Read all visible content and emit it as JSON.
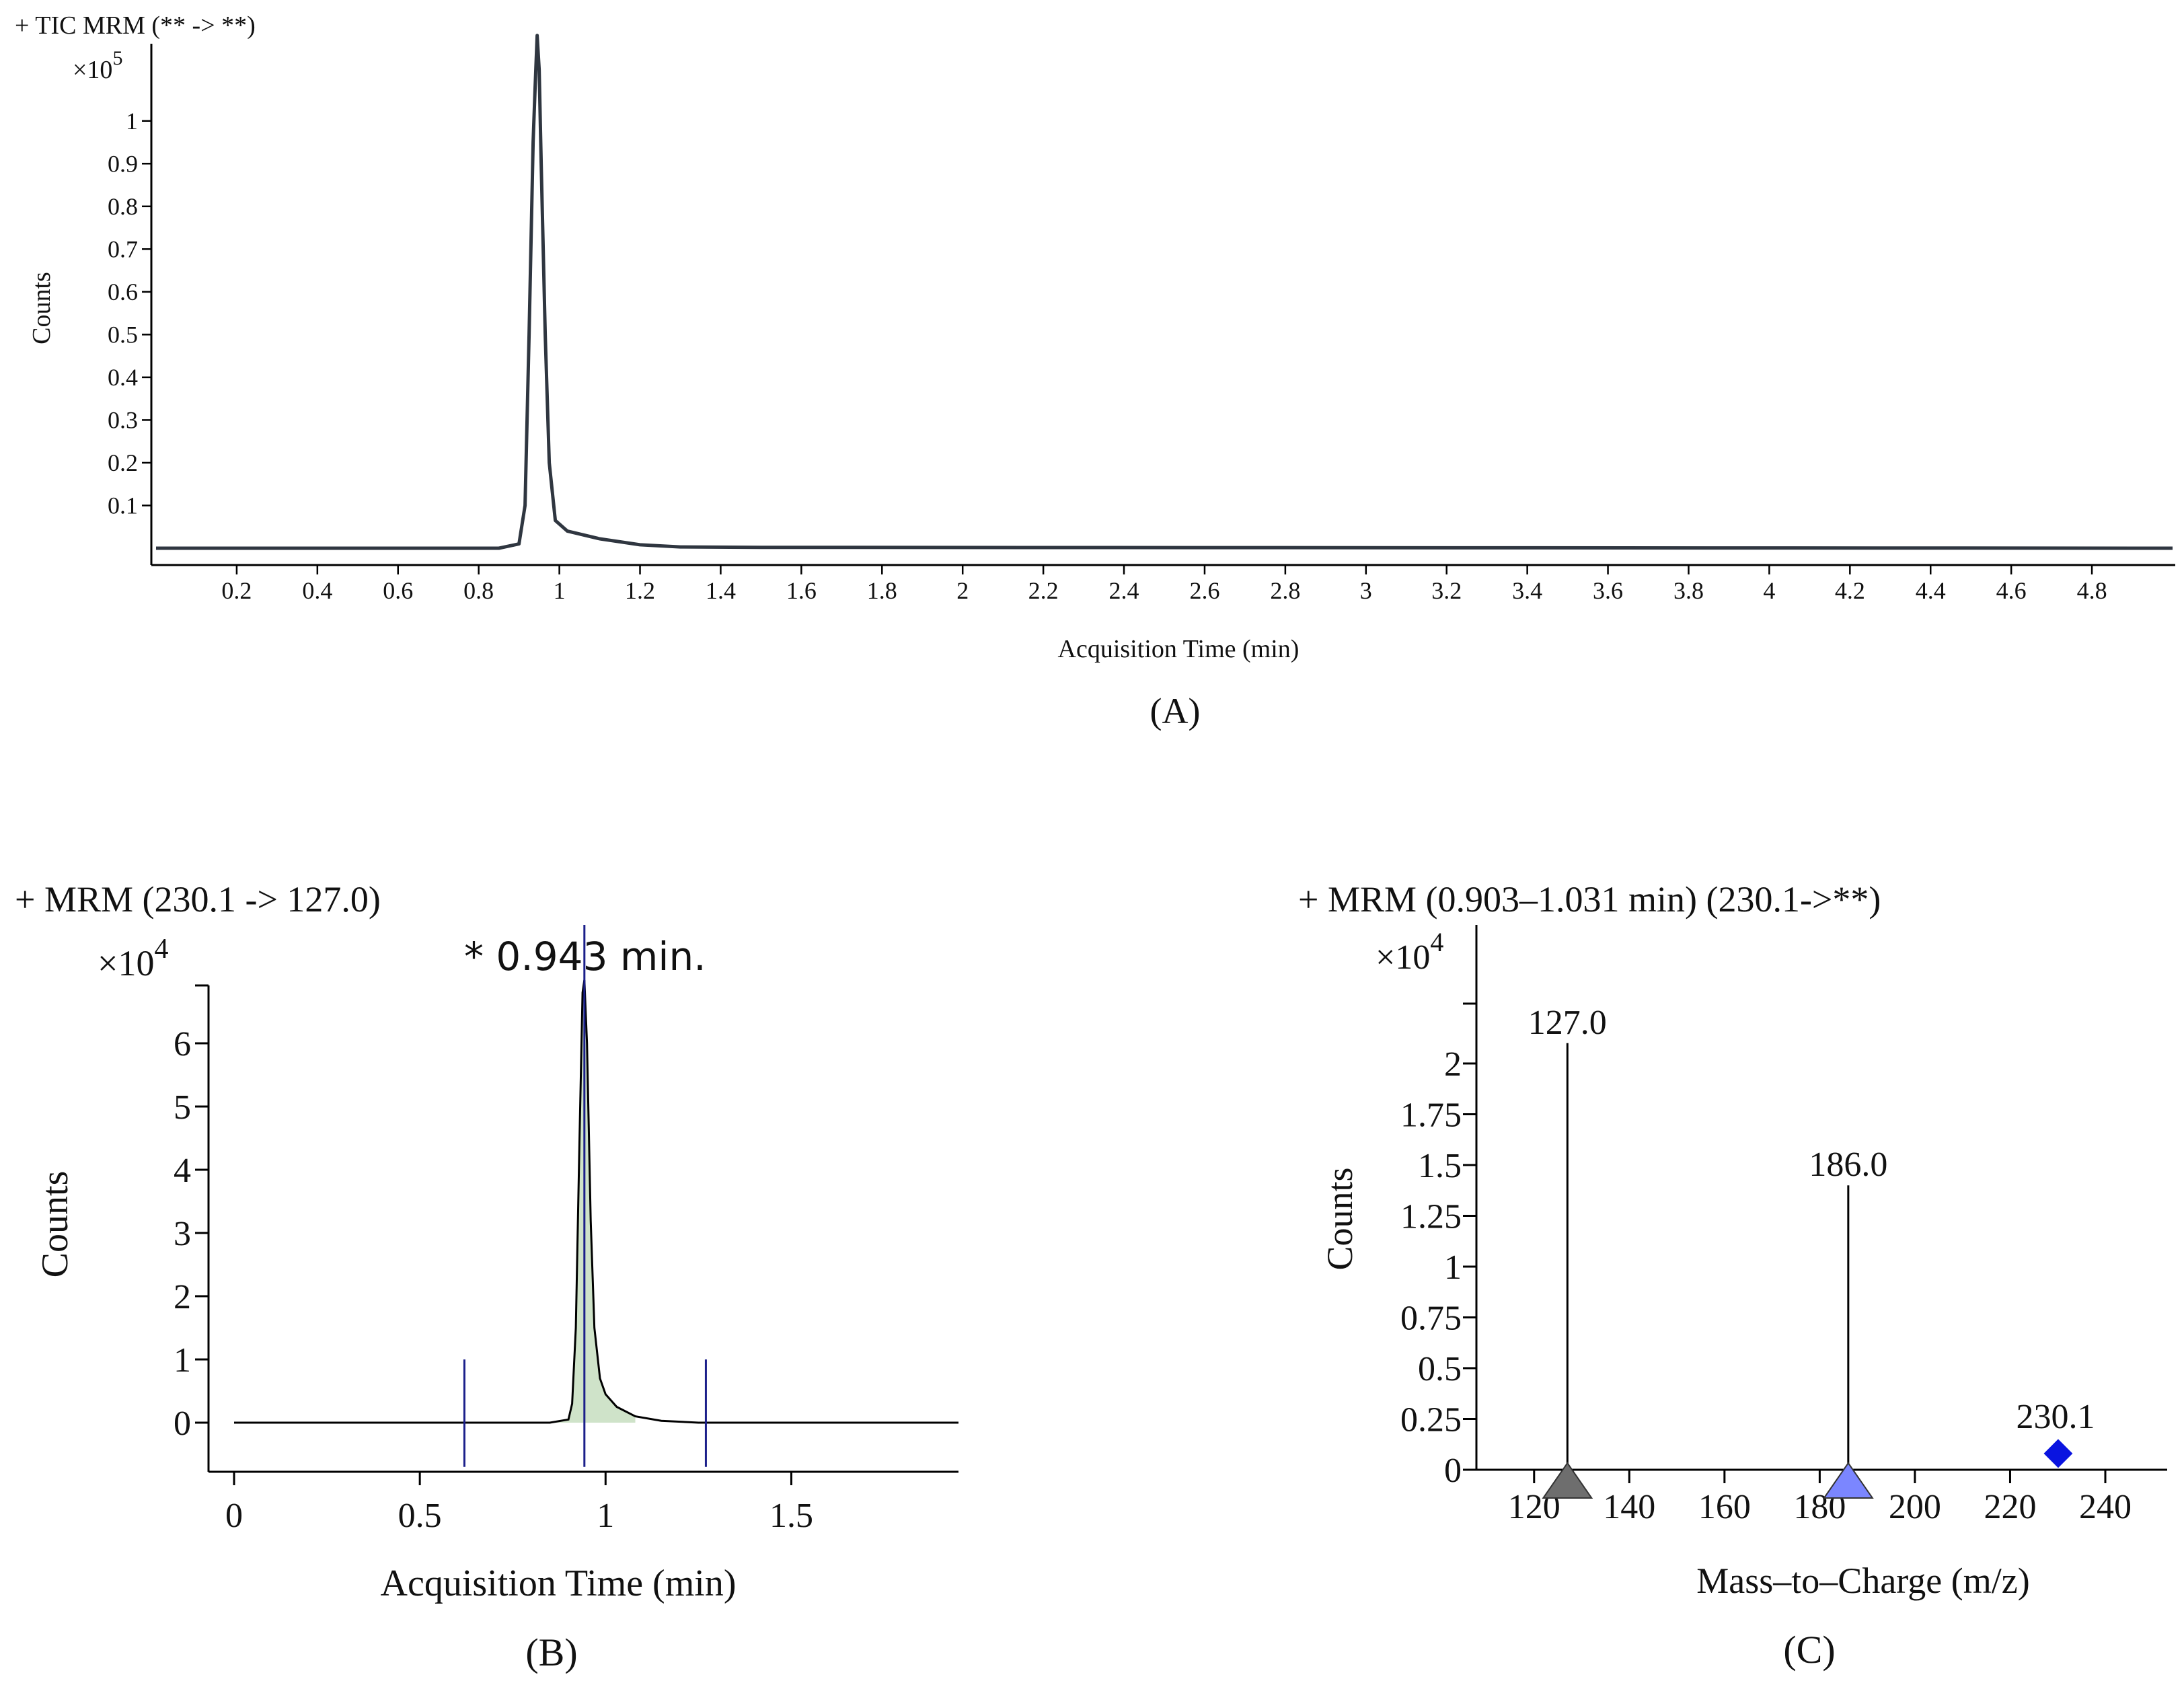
{
  "chart_data": [
    {
      "id": "A",
      "type": "line",
      "panel_label": "(A)",
      "title": "+ TIC MRM (** -> **)",
      "multiplier": "×10",
      "exponent": "5",
      "xlabel": "Acquisition Time (min)",
      "ylabel": "Counts",
      "xlim": [
        0,
        5.0
      ],
      "ylim": [
        0,
        1.22
      ],
      "xticks": [
        0.2,
        0.4,
        0.6,
        0.8,
        1,
        1.2,
        1.4,
        1.6,
        1.8,
        2,
        2.2,
        2.4,
        2.6,
        2.8,
        3,
        3.2,
        3.4,
        3.6,
        3.8,
        4,
        4.2,
        4.4,
        4.6,
        4.8
      ],
      "yticks": [
        0.1,
        0.2,
        0.3,
        0.4,
        0.5,
        0.6,
        0.7,
        0.8,
        0.9,
        1
      ],
      "series": [
        {
          "color": "#2f3640",
          "points": [
            [
              0.0,
              0.0
            ],
            [
              0.85,
              0.0
            ],
            [
              0.9,
              0.01
            ],
            [
              0.915,
              0.1
            ],
            [
              0.925,
              0.5
            ],
            [
              0.935,
              0.95
            ],
            [
              0.94,
              1.08
            ],
            [
              0.945,
              1.2
            ],
            [
              0.95,
              1.12
            ],
            [
              0.955,
              0.9
            ],
            [
              0.965,
              0.5
            ],
            [
              0.975,
              0.2
            ],
            [
              0.99,
              0.065
            ],
            [
              1.02,
              0.04
            ],
            [
              1.1,
              0.022
            ],
            [
              1.2,
              0.008
            ],
            [
              1.3,
              0.003
            ],
            [
              1.5,
              0.002
            ],
            [
              5.0,
              0.0
            ]
          ]
        }
      ],
      "grid": false
    },
    {
      "id": "B",
      "type": "line",
      "panel_label": "(B)",
      "title": "+ MRM (230.1 -> 127.0)",
      "multiplier": "×10",
      "exponent": "4",
      "annotation": "* 0.943 min.",
      "xlabel": "Acquisition Time (min)",
      "ylabel": "Counts",
      "xlim": [
        -0.05,
        1.95
      ],
      "ylim": [
        -0.7,
        7.0
      ],
      "xticks": [
        0,
        0.5,
        1,
        1.5
      ],
      "yticks": [
        0,
        1,
        2,
        3,
        4,
        5,
        6
      ],
      "integration_markers": [
        0.62,
        0.943,
        1.27
      ],
      "fill_color": "#cfe3c9",
      "series": [
        {
          "color": "#000000",
          "points": [
            [
              0.0,
              0.0
            ],
            [
              0.85,
              0.0
            ],
            [
              0.9,
              0.05
            ],
            [
              0.91,
              0.3
            ],
            [
              0.92,
              1.5
            ],
            [
              0.93,
              4.5
            ],
            [
              0.938,
              6.8
            ],
            [
              0.943,
              7.0
            ],
            [
              0.95,
              6.0
            ],
            [
              0.96,
              3.2
            ],
            [
              0.97,
              1.5
            ],
            [
              0.985,
              0.7
            ],
            [
              1.0,
              0.45
            ],
            [
              1.03,
              0.25
            ],
            [
              1.08,
              0.1
            ],
            [
              1.15,
              0.03
            ],
            [
              1.25,
              0.0
            ],
            [
              1.95,
              0.0
            ]
          ]
        }
      ],
      "grid": false
    },
    {
      "id": "C",
      "type": "bar",
      "panel_label": "(C)",
      "title": "+ MRM (0.903–1.031 min) (230.1->**)",
      "multiplier": "×10",
      "exponent": "4",
      "xlabel": "Mass–to–Charge (m/z)",
      "ylabel": "Counts",
      "xlim": [
        110,
        253
      ],
      "ylim": [
        0,
        2.27
      ],
      "xticks": [
        120,
        140,
        160,
        180,
        200,
        220,
        240
      ],
      "yticks": [
        0,
        0.25,
        0.5,
        0.75,
        1,
        1.25,
        1.5,
        1.75,
        2
      ],
      "peaks": [
        {
          "mz": 127.0,
          "value": 2.1,
          "label": "127.0",
          "marker": "triangle",
          "color": "#6e6e6e"
        },
        {
          "mz": 186.0,
          "value": 1.4,
          "label": "186.0",
          "marker": "triangle",
          "color": "#7b86ff"
        },
        {
          "mz": 230.1,
          "value": 0.08,
          "label": "230.1",
          "marker": "diamond",
          "color": "#0a14e0"
        }
      ],
      "grid": false
    }
  ]
}
